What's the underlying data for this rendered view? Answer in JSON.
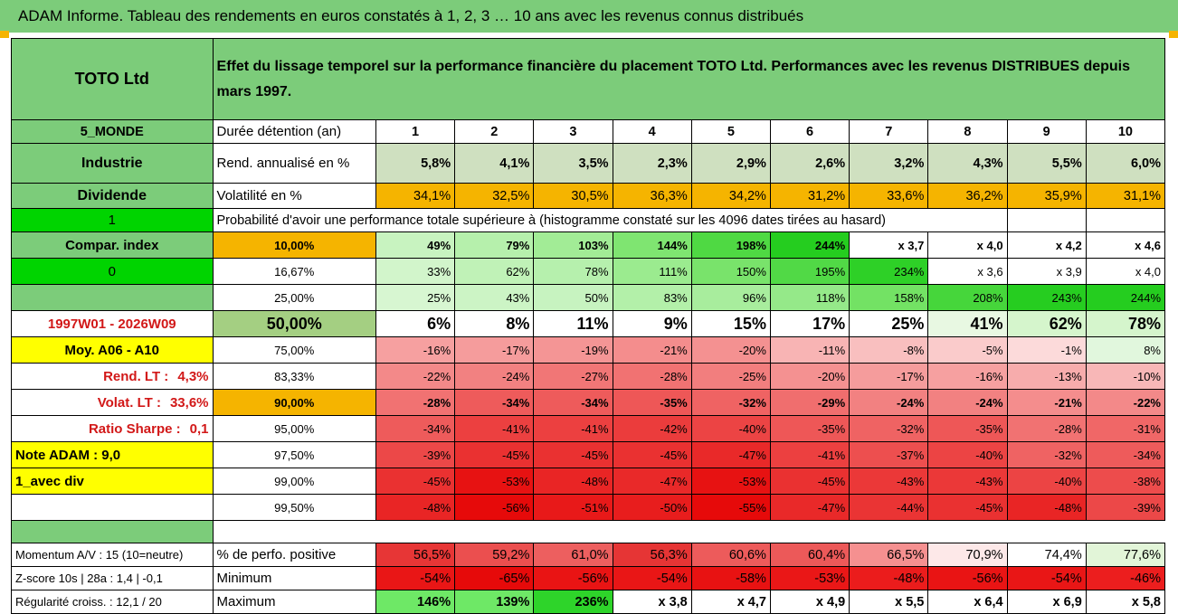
{
  "title": "ADAM Informe. Tableau des rendements en euros constatés à 1, 2, 3 … 10 ans avec les revenus connus distribués",
  "company": "TOTO Ltd",
  "description": "Effet du lissage temporel sur la performance financière du placement TOTO Ltd. Performances avec les revenus DISTRIBUES depuis mars 1997.",
  "left_labels": {
    "zone": "5_MONDE",
    "sector": "Industrie",
    "dividend": "Dividende",
    "dividend_flag": "1",
    "compar_index": "Compar. index",
    "compar_value": "0",
    "period": "1997W01 - 2026W09",
    "moy": "Moy. A06 - A10",
    "rend_lt_label": "Rend. LT :",
    "rend_lt_value": "4,3%",
    "volat_lt_label": "Volat. LT :",
    "volat_lt_value": "33,6%",
    "sharpe_label": "Ratio Sharpe :",
    "sharpe_value": "0,1",
    "note": "Note ADAM : 9,0",
    "avec_div": "1_avec div"
  },
  "duration_label": "Durée détention (an)",
  "years": [
    "1",
    "2",
    "3",
    "4",
    "5",
    "6",
    "7",
    "8",
    "9",
    "10"
  ],
  "rend_label": "Rend. annualisé en %",
  "rend_values": [
    "5,8%",
    "4,1%",
    "3,5%",
    "2,3%",
    "2,9%",
    "2,6%",
    "3,2%",
    "4,3%",
    "5,5%",
    "6,0%"
  ],
  "volat_label": "Volatilité en %",
  "volat_values": [
    "34,1%",
    "32,5%",
    "30,5%",
    "36,3%",
    "34,2%",
    "31,2%",
    "33,6%",
    "36,2%",
    "35,9%",
    "31,1%"
  ],
  "proba_label": "Probabilité d'avoir une performance totale supérieure à (histogramme constaté sur les 4096 dates tirées au hasard)",
  "quantiles": [
    {
      "label": "10,00%",
      "values": [
        "49%",
        "79%",
        "103%",
        "144%",
        "198%",
        "244%",
        "x 3,7",
        "x 4,0",
        "x 4,2",
        "x 4,6"
      ]
    },
    {
      "label": "16,67%",
      "values": [
        "33%",
        "62%",
        "78%",
        "111%",
        "150%",
        "195%",
        "234%",
        "x 3,6",
        "x 3,9",
        "x 4,0"
      ]
    },
    {
      "label": "25,00%",
      "values": [
        "25%",
        "43%",
        "50%",
        "83%",
        "96%",
        "118%",
        "158%",
        "208%",
        "243%",
        "244%"
      ]
    },
    {
      "label": "50,00%",
      "values": [
        "6%",
        "8%",
        "11%",
        "9%",
        "15%",
        "17%",
        "25%",
        "41%",
        "62%",
        "78%"
      ]
    },
    {
      "label": "75,00%",
      "values": [
        "-16%",
        "-17%",
        "-19%",
        "-21%",
        "-20%",
        "-11%",
        "-8%",
        "-5%",
        "-1%",
        "8%"
      ]
    },
    {
      "label": "83,33%",
      "values": [
        "-22%",
        "-24%",
        "-27%",
        "-28%",
        "-25%",
        "-20%",
        "-17%",
        "-16%",
        "-13%",
        "-10%"
      ]
    },
    {
      "label": "90,00%",
      "values": [
        "-28%",
        "-34%",
        "-34%",
        "-35%",
        "-32%",
        "-29%",
        "-24%",
        "-24%",
        "-21%",
        "-22%"
      ]
    },
    {
      "label": "95,00%",
      "values": [
        "-34%",
        "-41%",
        "-41%",
        "-42%",
        "-40%",
        "-35%",
        "-32%",
        "-35%",
        "-28%",
        "-31%"
      ]
    },
    {
      "label": "97,50%",
      "values": [
        "-39%",
        "-45%",
        "-45%",
        "-45%",
        "-47%",
        "-41%",
        "-37%",
        "-40%",
        "-32%",
        "-34%"
      ]
    },
    {
      "label": "99,00%",
      "values": [
        "-45%",
        "-53%",
        "-48%",
        "-47%",
        "-53%",
        "-45%",
        "-43%",
        "-43%",
        "-40%",
        "-38%"
      ]
    },
    {
      "label": "99,50%",
      "values": [
        "-48%",
        "-56%",
        "-51%",
        "-50%",
        "-55%",
        "-47%",
        "-44%",
        "-45%",
        "-48%",
        "-39%"
      ]
    }
  ],
  "bottom": {
    "momentum": "Momentum A/V : 15 (10=neutre)",
    "zscore": "Z-score 10s | 28a : 1,4 | -0,1",
    "regularite": "Régularité croiss. : 12,1 / 20",
    "positive_label": "% de perfo. positive",
    "positive_values": [
      "56,5%",
      "59,2%",
      "61,0%",
      "56,3%",
      "60,6%",
      "60,4%",
      "66,5%",
      "70,9%",
      "74,4%",
      "77,6%"
    ],
    "minimum_label": "Minimum",
    "minimum_values": [
      "-54%",
      "-65%",
      "-56%",
      "-54%",
      "-58%",
      "-53%",
      "-48%",
      "-56%",
      "-54%",
      "-46%"
    ],
    "maximum_label": "Maximum",
    "maximum_values": [
      "146%",
      "139%",
      "236%",
      "x 3,8",
      "x 4,7",
      "x 4,9",
      "x 5,5",
      "x 6,4",
      "x 6,9",
      "x 5,8"
    ]
  },
  "colors": {
    "header_green": "#7ccc7a",
    "volatility_orange": "#f5b400",
    "bright_green": "#00d400",
    "yellow": "#ffff00",
    "red_text": "#d21818"
  }
}
